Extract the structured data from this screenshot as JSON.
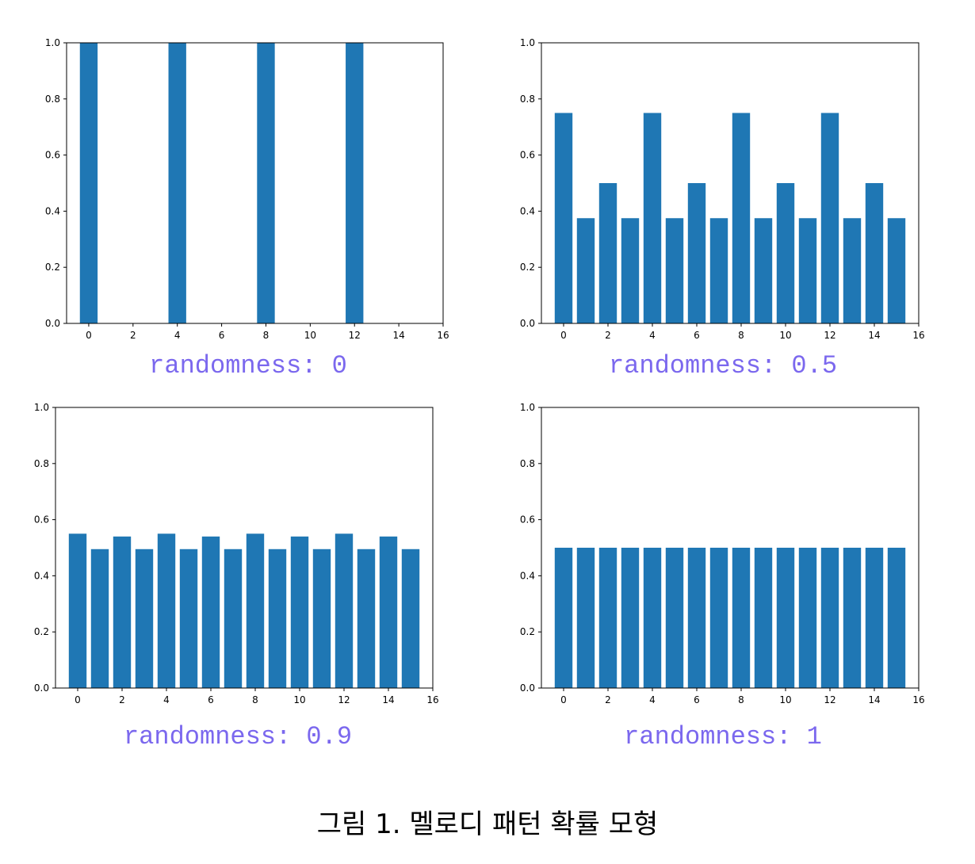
{
  "caption": "그림 1. 멜로디 패턴 확률 모형",
  "colors": {
    "bar": "#1f77b4",
    "label": "#7b68ee",
    "axis": "#000000"
  },
  "chart_data": [
    {
      "type": "bar",
      "label": "randomness: 0",
      "x": [
        0,
        1,
        2,
        3,
        4,
        5,
        6,
        7,
        8,
        9,
        10,
        11,
        12,
        13,
        14,
        15
      ],
      "values": [
        1.0,
        0,
        0,
        0,
        1.0,
        0,
        0,
        0,
        1.0,
        0,
        0,
        0,
        1.0,
        0,
        0,
        0
      ],
      "xlim": [
        -1,
        16
      ],
      "ylim": [
        0,
        1.0
      ],
      "xticks": [
        "0",
        "2",
        "4",
        "6",
        "8",
        "10",
        "12",
        "14",
        "16"
      ],
      "yticks": [
        "0.0",
        "0.2",
        "0.4",
        "0.6",
        "0.8",
        "1.0"
      ],
      "grid": false
    },
    {
      "type": "bar",
      "label": "randomness: 0.5",
      "x": [
        0,
        1,
        2,
        3,
        4,
        5,
        6,
        7,
        8,
        9,
        10,
        11,
        12,
        13,
        14,
        15
      ],
      "values": [
        0.75,
        0.375,
        0.5,
        0.375,
        0.75,
        0.375,
        0.5,
        0.375,
        0.75,
        0.375,
        0.5,
        0.375,
        0.75,
        0.375,
        0.5,
        0.375
      ],
      "xlim": [
        -1,
        16
      ],
      "ylim": [
        0,
        1.0
      ],
      "xticks": [
        "0",
        "2",
        "4",
        "6",
        "8",
        "10",
        "12",
        "14",
        "16"
      ],
      "yticks": [
        "0.0",
        "0.2",
        "0.4",
        "0.6",
        "0.8",
        "1.0"
      ],
      "grid": false
    },
    {
      "type": "bar",
      "label": "randomness: 0.9",
      "x": [
        0,
        1,
        2,
        3,
        4,
        5,
        6,
        7,
        8,
        9,
        10,
        11,
        12,
        13,
        14,
        15
      ],
      "values": [
        0.55,
        0.495,
        0.54,
        0.495,
        0.55,
        0.495,
        0.54,
        0.495,
        0.55,
        0.495,
        0.54,
        0.495,
        0.55,
        0.495,
        0.54,
        0.495
      ],
      "xlim": [
        -1,
        16
      ],
      "ylim": [
        0,
        1.0
      ],
      "xticks": [
        "0",
        "2",
        "4",
        "6",
        "8",
        "10",
        "12",
        "14",
        "16"
      ],
      "yticks": [
        "0.0",
        "0.2",
        "0.4",
        "0.6",
        "0.8",
        "1.0"
      ],
      "grid": false
    },
    {
      "type": "bar",
      "label": "randomness: 1",
      "x": [
        0,
        1,
        2,
        3,
        4,
        5,
        6,
        7,
        8,
        9,
        10,
        11,
        12,
        13,
        14,
        15
      ],
      "values": [
        0.5,
        0.5,
        0.5,
        0.5,
        0.5,
        0.5,
        0.5,
        0.5,
        0.5,
        0.5,
        0.5,
        0.5,
        0.5,
        0.5,
        0.5,
        0.5
      ],
      "xlim": [
        -1,
        16
      ],
      "ylim": [
        0,
        1.0
      ],
      "xticks": [
        "0",
        "2",
        "4",
        "6",
        "8",
        "10",
        "12",
        "14",
        "16"
      ],
      "yticks": [
        "0.0",
        "0.2",
        "0.4",
        "0.6",
        "0.8",
        "1.0"
      ],
      "grid": false
    }
  ]
}
